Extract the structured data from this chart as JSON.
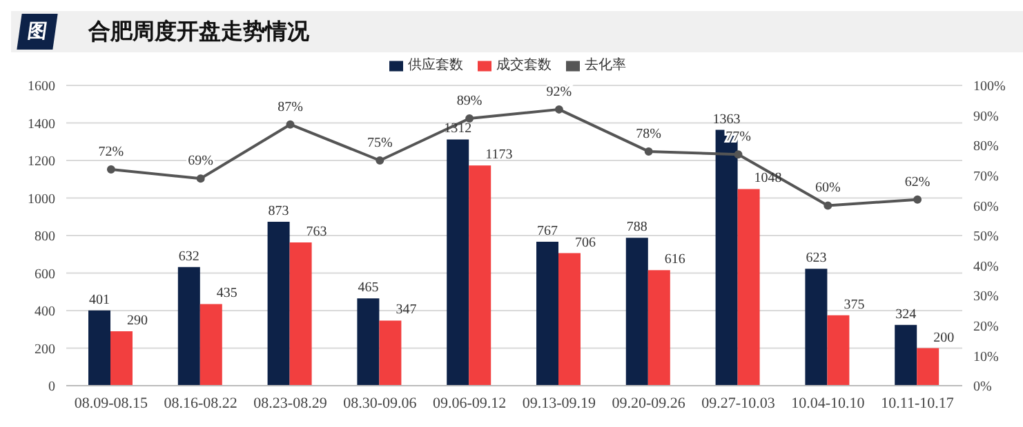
{
  "chart_data": {
    "type": "bar",
    "title": "合肥周度开盘走势情况",
    "annotations": [
      "图"
    ],
    "categories": [
      "08.09-08.15",
      "08.16-08.22",
      "08.23-08.29",
      "08.30-09.06",
      "09.06-09.12",
      "09.13-09.19",
      "09.20-09.26",
      "09.27-10.03",
      "10.04-10.10",
      "10.11-10.17"
    ],
    "series": [
      {
        "name": "供应套数",
        "color": "#0d2248",
        "values": [
          401,
          632,
          873,
          465,
          1312,
          767,
          788,
          1363,
          623,
          324
        ]
      },
      {
        "name": "成交套数",
        "color": "#f23f3f",
        "values": [
          290,
          435,
          763,
          347,
          1173,
          706,
          616,
          1048,
          375,
          200
        ]
      },
      {
        "name": "去化率",
        "type": "line",
        "axis": "y2",
        "color": "#555555",
        "values": [
          72,
          69,
          87,
          75,
          89,
          92,
          78,
          77,
          60,
          62
        ],
        "value_labels": [
          "72%",
          "69%",
          "87%",
          "75%",
          "89%",
          "92%",
          "78%",
          "77%",
          "60%",
          "62%"
        ]
      }
    ],
    "data_labels": true,
    "marker": "circle",
    "grid": "y",
    "legend": "top",
    "ylim": [
      0,
      1600
    ],
    "yticks": [
      0,
      200,
      400,
      600,
      800,
      1000,
      1200,
      1400,
      1600
    ],
    "y2lim": [
      0,
      100
    ],
    "y2ticks": [
      {
        "value": 0,
        "label": "0%"
      },
      {
        "value": 10,
        "label": "10%"
      },
      {
        "value": 20,
        "label": "20%"
      },
      {
        "value": 30,
        "label": "30%"
      },
      {
        "value": 40,
        "label": "40%"
      },
      {
        "value": 50,
        "label": "50%"
      },
      {
        "value": 60,
        "label": "60%"
      },
      {
        "value": 70,
        "label": "70%"
      },
      {
        "value": 80,
        "label": "80%"
      },
      {
        "value": 90,
        "label": "90%"
      },
      {
        "value": 100,
        "label": "100%"
      }
    ]
  }
}
